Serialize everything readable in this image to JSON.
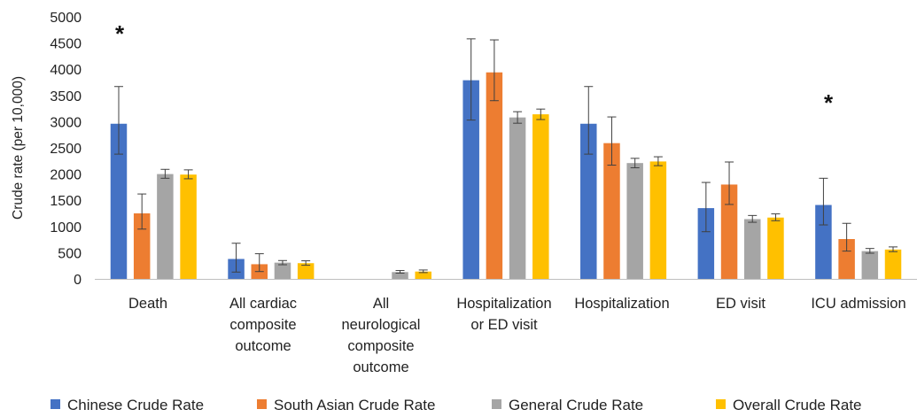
{
  "chart_data": {
    "type": "bar",
    "title": "",
    "xlabel": "",
    "ylabel": "Crude rate (per 10,000)",
    "ylim": [
      0,
      5000
    ],
    "yticks": [
      0,
      500,
      1000,
      1500,
      2000,
      2500,
      3000,
      3500,
      4000,
      4500,
      5000
    ],
    "grid": false,
    "legend_position": "bottom",
    "categories": [
      [
        "Death"
      ],
      [
        "All cardiac",
        "composite",
        "outcome"
      ],
      [
        "All",
        "neurological",
        "composite",
        "outcome"
      ],
      [
        "Hospitalization",
        "or ED visit"
      ],
      [
        "Hospitalization"
      ],
      [
        "ED visit"
      ],
      [
        "ICU admission"
      ]
    ],
    "series": [
      {
        "name": "Chinese Crude Rate",
        "color": "#4472C4",
        "values": [
          2960,
          380,
          0,
          3790,
          2960,
          1350,
          1410
        ],
        "err_low": [
          2380,
          130,
          0,
          3030,
          2380,
          900,
          1030
        ],
        "err_high": [
          3670,
          680,
          0,
          4580,
          3670,
          1840,
          1920
        ]
      },
      {
        "name": "South Asian Crude Rate",
        "color": "#ED7D31",
        "values": [
          1250,
          280,
          0,
          3940,
          2590,
          1800,
          760
        ],
        "err_low": [
          950,
          140,
          0,
          3400,
          2170,
          1420,
          530
        ],
        "err_high": [
          1620,
          480,
          0,
          4560,
          3090,
          2230,
          1060
        ]
      },
      {
        "name": "General Crude Rate",
        "color": "#A5A5A5",
        "values": [
          2000,
          310,
          130,
          3080,
          2210,
          1140,
          530
        ],
        "err_low": [
          1920,
          270,
          110,
          2970,
          2120,
          1080,
          490
        ],
        "err_high": [
          2090,
          350,
          160,
          3190,
          2300,
          1210,
          580
        ]
      },
      {
        "name": "Overall Crude Rate",
        "color": "#FFC000",
        "values": [
          1990,
          300,
          140,
          3140,
          2240,
          1170,
          560
        ],
        "err_low": [
          1910,
          260,
          120,
          3040,
          2160,
          1110,
          520
        ],
        "err_high": [
          2080,
          345,
          170,
          3240,
          2330,
          1240,
          610
        ]
      }
    ],
    "annotations": [
      {
        "text": "*",
        "category_index": 0
      },
      {
        "text": "*",
        "category_index": 6
      }
    ]
  }
}
